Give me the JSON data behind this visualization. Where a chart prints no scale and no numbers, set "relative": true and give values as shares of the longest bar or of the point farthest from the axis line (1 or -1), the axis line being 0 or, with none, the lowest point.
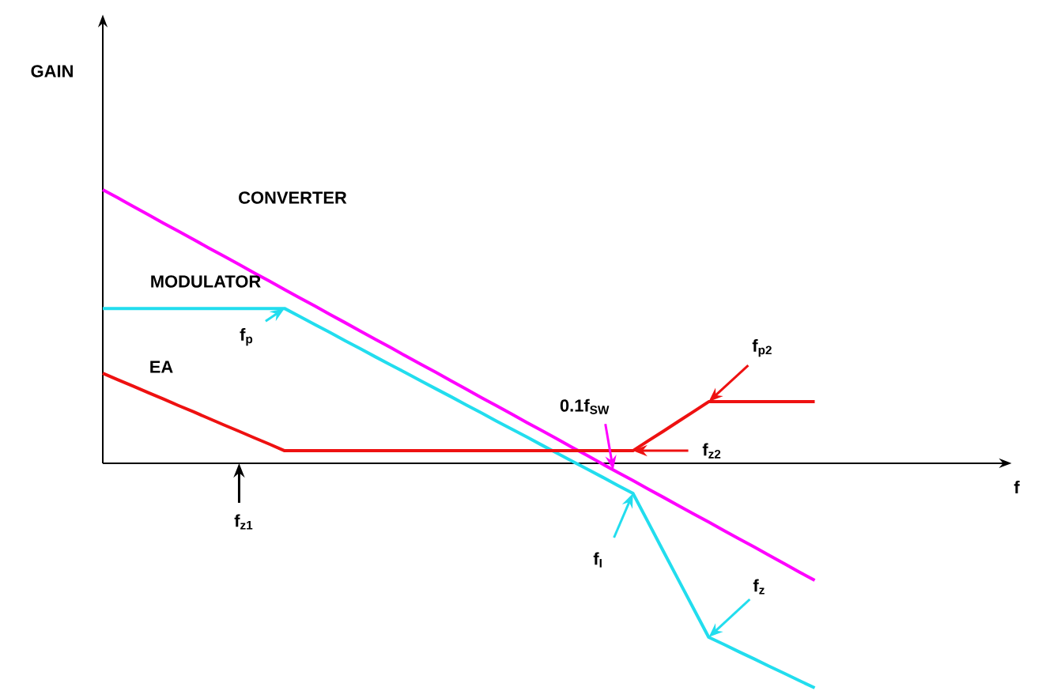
{
  "chart_data": {
    "type": "line",
    "relative": true,
    "tick_labels": false,
    "categories": [
      null,
      null,
      null,
      null,
      null,
      null,
      null,
      null,
      null,
      null,
      null,
      null,
      null,
      null,
      null,
      null,
      null,
      null,
      null,
      null,
      null,
      null,
      null,
      null,
      null,
      null,
      null,
      null,
      null,
      null,
      null,
      null,
      null,
      null,
      null,
      null,
      null,
      null,
      null,
      null,
      null,
      null,
      null,
      null,
      null,
      null,
      null,
      null
    ],
    "series": [
      {
        "color": "#ff00ff",
        "values": [
          1.0,
          0.97,
          0.939,
          0.909,
          0.878,
          0.848,
          0.818,
          0.787,
          0.757,
          0.727,
          0.696,
          0.666,
          0.635,
          0.605,
          0.575,
          0.544,
          0.514,
          0.483,
          0.453,
          0.423,
          0.392,
          0.362,
          0.332,
          0.301,
          0.271,
          0.24,
          0.21,
          0.18,
          0.149,
          0.119,
          0.089,
          0.058,
          0.028,
          -0.003,
          -0.033,
          -0.063,
          -0.094,
          -0.124,
          -0.155,
          -0.185,
          -0.215,
          -0.246,
          -0.276,
          -0.306,
          -0.337,
          -0.367,
          -0.398,
          -0.428
        ]
      },
      {
        "color": "#22ddee",
        "values": [
          0.566,
          0.566,
          0.566,
          0.566,
          0.566,
          0.566,
          0.566,
          0.566,
          0.566,
          0.566,
          0.566,
          0.566,
          0.566,
          0.537,
          0.507,
          0.478,
          0.448,
          0.419,
          0.389,
          0.36,
          0.331,
          0.301,
          0.272,
          0.243,
          0.213,
          0.184,
          0.154,
          0.125,
          0.096,
          0.066,
          0.037,
          0.007,
          -0.022,
          -0.051,
          -0.081,
          -0.11,
          -0.215,
          -0.321,
          -0.426,
          -0.531,
          -0.636,
          -0.662,
          -0.689,
          -0.715,
          -0.742,
          -0.768,
          -0.795,
          -0.821
        ]
      },
      {
        "color": "#ee1111",
        "values": [
          0.329,
          0.305,
          0.282,
          0.258,
          0.235,
          0.211,
          0.188,
          0.164,
          0.14,
          0.117,
          0.093,
          0.07,
          0.046,
          0.046,
          0.046,
          0.046,
          0.046,
          0.046,
          0.046,
          0.046,
          0.046,
          0.046,
          0.046,
          0.046,
          0.046,
          0.046,
          0.046,
          0.046,
          0.046,
          0.046,
          0.046,
          0.046,
          0.046,
          0.046,
          0.046,
          0.046,
          0.082,
          0.117,
          0.153,
          0.189,
          0.225,
          0.225,
          0.225,
          0.225,
          0.225,
          0.225,
          0.225,
          0.225
        ]
      }
    ],
    "annotations": [
      "GAIN",
      "f",
      "CONVERTER",
      "MODULATOR",
      "EA",
      "f$_{p}$",
      "f$_{z1}$",
      "f$_{I}$",
      "f$_{z}$",
      "f$_{p2}$",
      "f$_{z2}$",
      "0.1f$_{SW}$"
    ]
  }
}
